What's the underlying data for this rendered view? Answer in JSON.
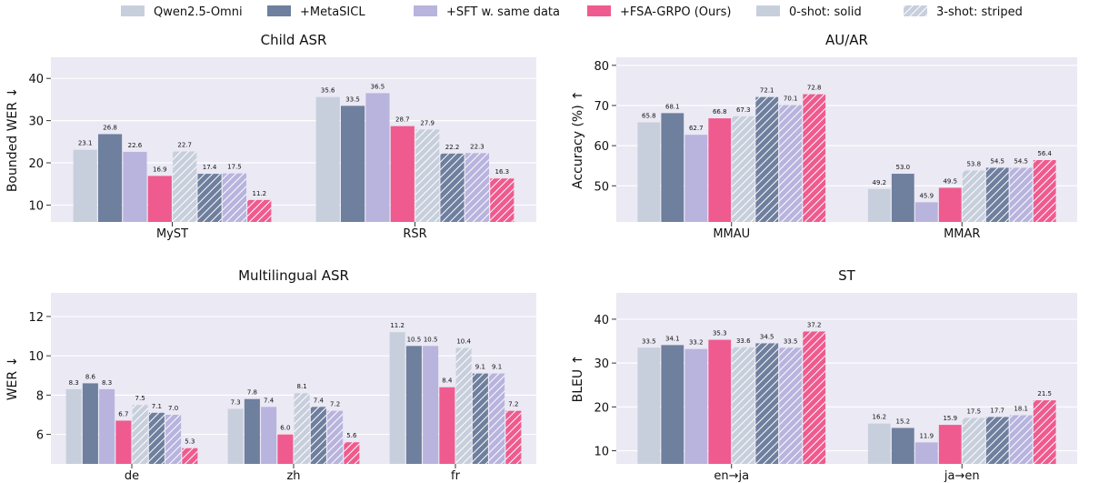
{
  "legend": {
    "items": [
      {
        "label": "Qwen2.5-Omni",
        "color": "#c8cfdc",
        "striped": false
      },
      {
        "label": "+MetaSICL",
        "color": "#6f7f9e",
        "striped": false
      },
      {
        "label": "+SFT w. same data",
        "color": "#b8b4de",
        "striped": false
      },
      {
        "label": "+FSA-GRPO (Ours)",
        "color": "#ef5b8e",
        "striped": false
      },
      {
        "label": "0-shot: solid",
        "color": "#c8cfdc",
        "striped": false
      },
      {
        "label": "3-shot: striped",
        "color": "#c8cfdc",
        "striped": true
      }
    ]
  },
  "colors": {
    "background": "#eae9f4",
    "qwen": "#c8cfdc",
    "metasicl": "#6f7f9e",
    "sft": "#b8b4de",
    "fsa": "#ef5b8e"
  },
  "chart_data": [
    {
      "type": "bar",
      "title": "Child ASR",
      "ylabel": "Bounded WER ↓",
      "ylim": [
        6,
        45
      ],
      "yticks": [
        10,
        20,
        30,
        40
      ],
      "categories": [
        "MyST",
        "RSR"
      ],
      "grid": true,
      "series": [
        {
          "name": "Qwen2.5-Omni (0-shot)",
          "values": [
            23.1,
            35.6
          ]
        },
        {
          "name": "+MetaSICL (0-shot)",
          "values": [
            26.8,
            33.5
          ]
        },
        {
          "name": "+SFT w. same data (0-shot)",
          "values": [
            22.6,
            36.5
          ]
        },
        {
          "name": "+FSA-GRPO (Ours) (0-shot)",
          "values": [
            16.9,
            28.7
          ]
        },
        {
          "name": "Qwen2.5-Omni (3-shot)",
          "values": [
            22.7,
            27.9
          ]
        },
        {
          "name": "+MetaSICL (3-shot)",
          "values": [
            17.4,
            22.2
          ]
        },
        {
          "name": "+SFT w. same data (3-shot)",
          "values": [
            17.5,
            22.3
          ]
        },
        {
          "name": "+FSA-GRPO (Ours) (3-shot)",
          "values": [
            11.2,
            16.3
          ]
        }
      ]
    },
    {
      "type": "bar",
      "title": "AU/AR",
      "ylabel": "Accuracy (%) ↑",
      "ylim": [
        41,
        82
      ],
      "yticks": [
        50,
        60,
        70,
        80
      ],
      "categories": [
        "MMAU",
        "MMAR"
      ],
      "grid": true,
      "series": [
        {
          "name": "Qwen2.5-Omni (0-shot)",
          "values": [
            65.8,
            49.2
          ]
        },
        {
          "name": "+MetaSICL (0-shot)",
          "values": [
            68.1,
            53.0
          ]
        },
        {
          "name": "+SFT w. same data (0-shot)",
          "values": [
            62.7,
            45.9
          ]
        },
        {
          "name": "+FSA-GRPO (Ours) (0-shot)",
          "values": [
            66.8,
            49.5
          ]
        },
        {
          "name": "Qwen2.5-Omni (3-shot)",
          "values": [
            67.3,
            53.8
          ]
        },
        {
          "name": "+MetaSICL (3-shot)",
          "values": [
            72.1,
            54.5
          ]
        },
        {
          "name": "+SFT w. same data (3-shot)",
          "values": [
            70.1,
            54.5
          ]
        },
        {
          "name": "+FSA-GRPO (Ours) (3-shot)",
          "values": [
            72.8,
            56.4
          ]
        }
      ]
    },
    {
      "type": "bar",
      "title": "Multilingual ASR",
      "ylabel": "WER ↓",
      "ylim": [
        4.5,
        13.2
      ],
      "yticks": [
        6,
        8,
        10,
        12
      ],
      "categories": [
        "de",
        "zh",
        "fr"
      ],
      "grid": true,
      "series": [
        {
          "name": "Qwen2.5-Omni (0-shot)",
          "values": [
            8.3,
            7.3,
            11.2
          ]
        },
        {
          "name": "+MetaSICL (0-shot)",
          "values": [
            8.6,
            7.8,
            10.5
          ]
        },
        {
          "name": "+SFT w. same data (0-shot)",
          "values": [
            8.3,
            7.4,
            10.5
          ]
        },
        {
          "name": "+FSA-GRPO (Ours) (0-shot)",
          "values": [
            6.7,
            6.0,
            8.4
          ]
        },
        {
          "name": "Qwen2.5-Omni (3-shot)",
          "values": [
            7.5,
            8.1,
            10.4
          ]
        },
        {
          "name": "+MetaSICL (3-shot)",
          "values": [
            7.1,
            7.4,
            9.1
          ]
        },
        {
          "name": "+SFT w. same data (3-shot)",
          "values": [
            7.0,
            7.2,
            9.1
          ]
        },
        {
          "name": "+FSA-GRPO (Ours) (3-shot)",
          "values": [
            5.3,
            5.6,
            7.2
          ]
        }
      ]
    },
    {
      "type": "bar",
      "title": "ST",
      "ylabel": "BLEU ↑",
      "ylim": [
        7,
        46
      ],
      "yticks": [
        10,
        20,
        30,
        40
      ],
      "categories": [
        "en→ja",
        "ja→en"
      ],
      "grid": true,
      "series": [
        {
          "name": "Qwen2.5-Omni (0-shot)",
          "values": [
            33.5,
            16.2
          ]
        },
        {
          "name": "+MetaSICL (0-shot)",
          "values": [
            34.1,
            15.2
          ]
        },
        {
          "name": "+SFT w. same data (0-shot)",
          "values": [
            33.2,
            11.9
          ]
        },
        {
          "name": "+FSA-GRPO (Ours) (0-shot)",
          "values": [
            35.3,
            15.9
          ]
        },
        {
          "name": "Qwen2.5-Omni (3-shot)",
          "values": [
            33.6,
            17.5
          ]
        },
        {
          "name": "+MetaSICL (3-shot)",
          "values": [
            34.5,
            17.7
          ]
        },
        {
          "name": "+SFT w. same data (3-shot)",
          "values": [
            33.5,
            18.1
          ]
        },
        {
          "name": "+FSA-GRPO (Ours) (3-shot)",
          "values": [
            37.2,
            21.5
          ]
        }
      ]
    }
  ]
}
